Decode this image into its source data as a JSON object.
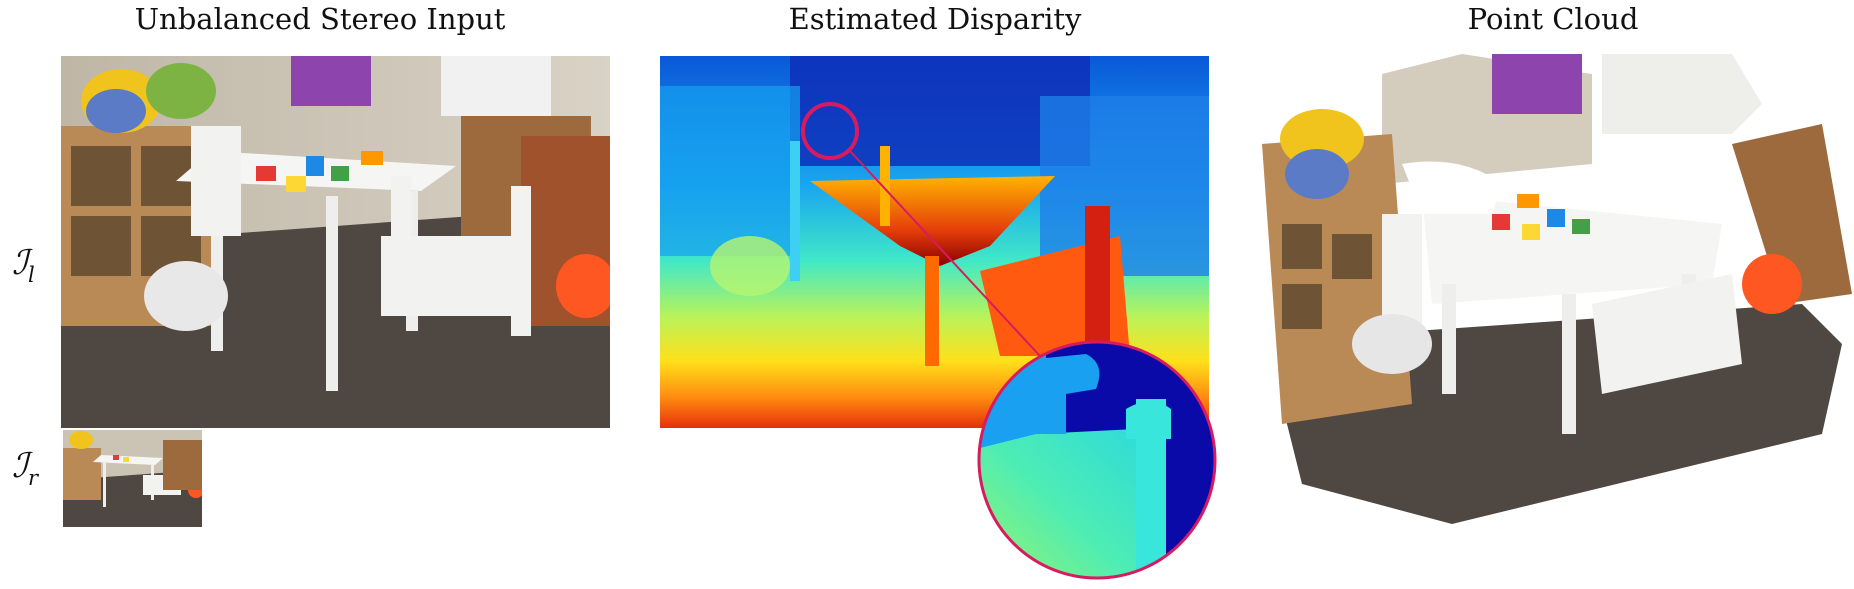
{
  "titles": {
    "input": "Unbalanced Stereo Input",
    "disparity": "Estimated Disparity",
    "cloud": "Point Cloud"
  },
  "row_labels": {
    "left": {
      "symbol": "ℐ",
      "sub": "l"
    },
    "right": {
      "symbol": "ℐ",
      "sub": "r"
    }
  },
  "colors": {
    "highlight": "#d81b60",
    "floor": "#4f4842",
    "wall": "#cfc7b9",
    "furniture": "#f2f2f0"
  }
}
